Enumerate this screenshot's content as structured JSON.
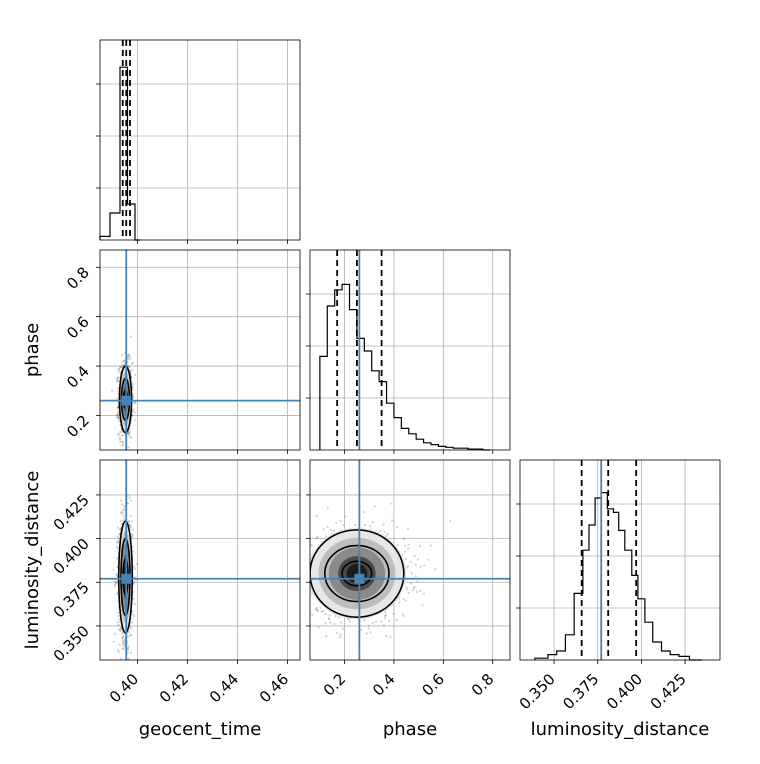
{
  "colors": {
    "truth": "#4682b4",
    "hist": "#000000",
    "grid": "#b0b0b0"
  },
  "chart_data": {
    "type": "corner",
    "parameters": [
      "geocent_time",
      "phase",
      "luminosity_distance"
    ],
    "axis_labels": {
      "x": [
        "geocent_time",
        "phase",
        "luminosity_distance"
      ],
      "y": [
        "",
        "phase",
        "luminosity_distance"
      ]
    },
    "truths": {
      "geocent_time": 0.3955,
      "phase": 0.26,
      "luminosity_distance": 0.377
    },
    "ranges": {
      "geocent_time": [
        0.385,
        0.465
      ],
      "phase": [
        0.06,
        0.87
      ],
      "luminosity_distance": [
        0.3305,
        0.445
      ]
    },
    "ticks": {
      "geocent_time": {
        "values": [
          0.4,
          0.42,
          0.44,
          0.46
        ],
        "labels": [
          "0.40",
          "0.42",
          "0.44",
          "0.46"
        ]
      },
      "phase": {
        "values": [
          0.2,
          0.4,
          0.6,
          0.8
        ],
        "labels": [
          "0.2",
          "0.4",
          "0.6",
          "0.8"
        ]
      },
      "luminosity_distance": {
        "values": [
          0.35,
          0.375,
          0.4,
          0.425
        ],
        "labels": [
          "0.350",
          "0.375",
          "0.400",
          "0.425"
        ]
      }
    },
    "grid": true,
    "histograms": {
      "geocent_time": {
        "edges": [
          0.385,
          0.389,
          0.393,
          0.3945,
          0.396,
          0.3975,
          0.399,
          0.401
        ],
        "counts": [
          0.02,
          0.15,
          0.96,
          0.96,
          0.2,
          0.2,
          0.0
        ],
        "quantiles": [
          0.3941,
          0.3955,
          0.397
        ]
      },
      "phase": {
        "edges": [
          0.1,
          0.13,
          0.16,
          0.19,
          0.22,
          0.25,
          0.28,
          0.31,
          0.34,
          0.37,
          0.4,
          0.43,
          0.46,
          0.49,
          0.52,
          0.55,
          0.58,
          0.61,
          0.64,
          0.67,
          0.7,
          0.73,
          0.76,
          0.79
        ],
        "counts": [
          0.52,
          0.8,
          0.89,
          0.92,
          0.78,
          0.62,
          0.55,
          0.44,
          0.38,
          0.26,
          0.18,
          0.12,
          0.09,
          0.06,
          0.04,
          0.03,
          0.02,
          0.015,
          0.01,
          0.01,
          0.005,
          0.005,
          0.0
        ],
        "quantiles": [
          0.17,
          0.25,
          0.35
        ]
      },
      "luminosity_distance": {
        "edges": [
          0.339,
          0.3465,
          0.3515,
          0.3565,
          0.3615,
          0.3665,
          0.37,
          0.3735,
          0.377,
          0.3805,
          0.384,
          0.387,
          0.3905,
          0.3945,
          0.398,
          0.402,
          0.4065,
          0.4115,
          0.4165,
          0.4215,
          0.4275,
          0.4345
        ],
        "counts": [
          0.01,
          0.03,
          0.05,
          0.14,
          0.37,
          0.61,
          0.75,
          0.9,
          0.93,
          0.84,
          0.82,
          0.72,
          0.61,
          0.47,
          0.34,
          0.21,
          0.1,
          0.05,
          0.03,
          0.02,
          0.0
        ],
        "quantiles": [
          0.3658,
          0.381,
          0.397
        ]
      }
    },
    "contours": {
      "phase|geocent_time": {
        "center": [
          0.3952,
          0.265
        ],
        "radii": [
          [
            0.0008,
            0.035
          ],
          [
            0.0016,
            0.085
          ],
          [
            0.0024,
            0.135
          ]
        ]
      },
      "luminosity_distance|geocent_time": {
        "center": [
          0.3952,
          0.378
        ],
        "radii": [
          [
            0.001,
            0.01
          ],
          [
            0.0018,
            0.022
          ],
          [
            0.0027,
            0.032
          ]
        ]
      },
      "luminosity_distance|phase": {
        "center": [
          0.25,
          0.38
        ],
        "radii": [
          [
            0.06,
            0.007
          ],
          [
            0.13,
            0.016
          ],
          [
            0.19,
            0.025
          ]
        ]
      }
    }
  }
}
